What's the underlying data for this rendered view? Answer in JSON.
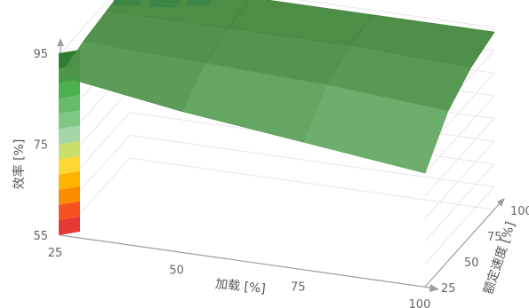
{
  "chart_data": {
    "type": "surface-3d",
    "title": "",
    "zlabel": "效率 [%]",
    "xlabel": "加载 [%]",
    "ylabel": "额定速度 [%]",
    "z_ticks": [
      "55",
      "75",
      "95"
    ],
    "x_ticks": [
      "25",
      "50",
      "75",
      "100"
    ],
    "y_ticks": [
      "25",
      "50",
      "75",
      "100"
    ],
    "x": [
      25,
      50,
      75,
      100
    ],
    "y": [
      25,
      50,
      75,
      100
    ],
    "zlim": [
      55,
      95
    ],
    "surface": [
      [
        90,
        92,
        93,
        94
      ],
      [
        86,
        91,
        93,
        94
      ],
      [
        83,
        90,
        93,
        94
      ],
      [
        80,
        88,
        92,
        94
      ]
    ],
    "color_scale": [
      "#e53935",
      "#f4511e",
      "#fb8c00",
      "#ffb300",
      "#fdd835",
      "#c8e06b",
      "#a5d6a7",
      "#81c784",
      "#66bb6a",
      "#4caf50",
      "#43a047",
      "#2e7d32"
    ],
    "grid": true,
    "legend": "none"
  }
}
